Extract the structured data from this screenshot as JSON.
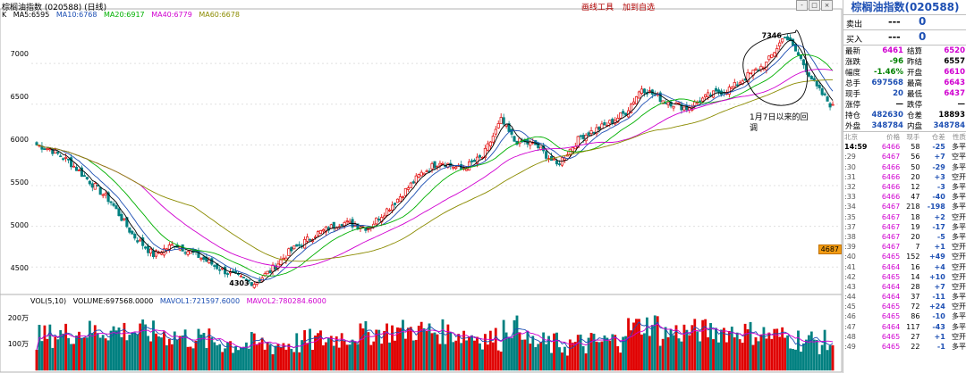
{
  "header": {
    "title": "棕榈油指数 (020588) (日线)",
    "links": [
      "画线工具",
      "加到自选"
    ]
  },
  "ma_legend": [
    {
      "label": "K",
      "color": "#000000"
    },
    {
      "label": "MA5:6595",
      "color": "#000000"
    },
    {
      "label": "MA10:6768",
      "color": "#1d4fb3"
    },
    {
      "label": "MA20:6917",
      "color": "#00b000"
    },
    {
      "label": "MA40:6779",
      "color": "#d000d0"
    },
    {
      "label": "MA60:6678",
      "color": "#8b8b00"
    }
  ],
  "vol_legend": [
    {
      "label": "VOL(5,10)",
      "color": "#000000"
    },
    {
      "label": "VOLUME:697568.0000",
      "color": "#000000"
    },
    {
      "label": "MAVOL1:721597.6000",
      "color": "#1d4fb3"
    },
    {
      "label": "MAVOL2:780284.6000",
      "color": "#d000d0"
    }
  ],
  "price_axis": [
    "7000",
    "6500",
    "6000",
    "5500",
    "5000",
    "4500"
  ],
  "volume_axis": [
    "200万",
    "100万"
  ],
  "annotations": {
    "high": "7346",
    "low": "4303",
    "note": "1月7日以来的回调",
    "last_price_tag": "4687"
  },
  "window_buttons": [
    "-",
    "□",
    "×"
  ],
  "quote": {
    "title": "棕榈油指数(020588)",
    "sell_label": "卖出",
    "buy_label": "买入",
    "dash": "---",
    "sell_value": "0",
    "buy_value": "0",
    "stats": [
      [
        "最新",
        "6461",
        "结算",
        "6520"
      ],
      [
        "涨跌",
        "-96",
        "昨结",
        "6557"
      ],
      [
        "幅度",
        "-1.46%",
        "开盘",
        "6610"
      ],
      [
        "总手",
        "697568",
        "最高",
        "6643"
      ],
      [
        "现手",
        "20",
        "最低",
        "6437"
      ],
      [
        "涨停",
        "—",
        "跌停",
        "—"
      ],
      [
        "持仓",
        "482630",
        "仓差",
        "18893"
      ],
      [
        "外盘",
        "348784",
        "内盘",
        "348784"
      ]
    ],
    "tick_header": [
      "北京",
      "价格",
      "现手",
      "仓差",
      "性质"
    ],
    "ticks": [
      [
        "14:59",
        "6466",
        "58",
        "-25",
        "多平"
      ],
      [
        ":29",
        "6467",
        "56",
        "+7",
        "空平"
      ],
      [
        ":30",
        "6466",
        "50",
        "-29",
        "多平"
      ],
      [
        ":31",
        "6466",
        "20",
        "+3",
        "空开"
      ],
      [
        ":32",
        "6466",
        "12",
        "-3",
        "多平"
      ],
      [
        ":33",
        "6466",
        "47",
        "-40",
        "多平"
      ],
      [
        ":34",
        "6467",
        "218",
        "-198",
        "多平"
      ],
      [
        ":35",
        "6467",
        "18",
        "+2",
        "空开"
      ],
      [
        ":37",
        "6467",
        "19",
        "-17",
        "多平"
      ],
      [
        ":38",
        "6467",
        "20",
        "-5",
        "多平"
      ],
      [
        ":39",
        "6467",
        "7",
        "+1",
        "空开"
      ],
      [
        ":40",
        "6465",
        "152",
        "+49",
        "空开"
      ],
      [
        ":41",
        "6464",
        "16",
        "+4",
        "空开"
      ],
      [
        ":42",
        "6465",
        "14",
        "+10",
        "空开"
      ],
      [
        ":43",
        "6464",
        "28",
        "+7",
        "空开"
      ],
      [
        ":44",
        "6464",
        "37",
        "-11",
        "多平"
      ],
      [
        ":45",
        "6465",
        "72",
        "+24",
        "空开"
      ],
      [
        ":46",
        "6465",
        "86",
        "-10",
        "多平"
      ],
      [
        ":47",
        "6464",
        "117",
        "-43",
        "多平"
      ],
      [
        ":48",
        "6465",
        "27",
        "+1",
        "空开"
      ],
      [
        ":49",
        "6465",
        "22",
        "-1",
        "多平"
      ]
    ]
  },
  "colors": {
    "up": "#e00000",
    "down": "#008080",
    "ma5": "#000000",
    "ma10": "#1d4fb3",
    "ma20": "#00b000",
    "ma40": "#d000d0",
    "ma60": "#8b8b00"
  }
}
